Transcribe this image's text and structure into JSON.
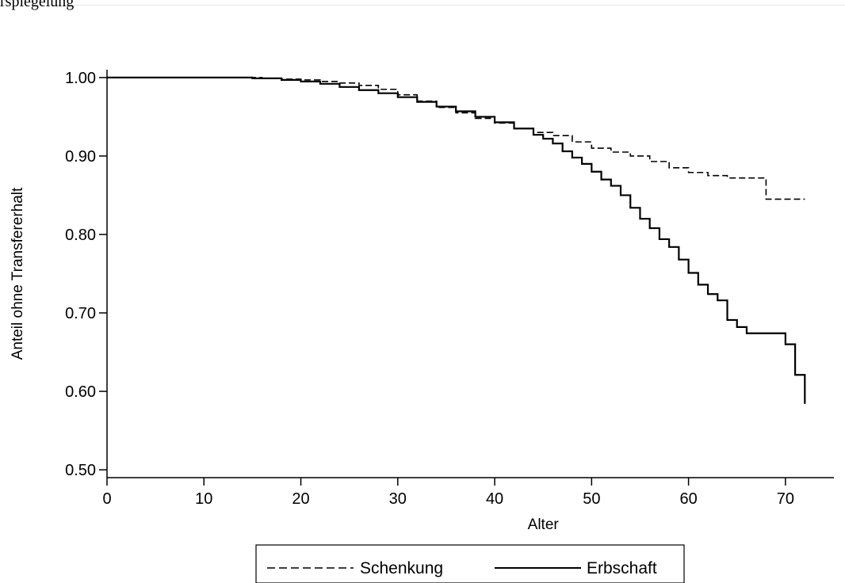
{
  "page_fragment": "rspiegelung",
  "chart_data": {
    "type": "line",
    "xlabel": "Alter",
    "ylabel": "Anteil ohne Transfererhalt",
    "xlim": [
      0,
      75
    ],
    "ylim": [
      0.49,
      1.01
    ],
    "x_ticks": [
      0,
      10,
      20,
      30,
      40,
      50,
      60,
      70
    ],
    "x_tick_labels": [
      "0",
      "10",
      "20",
      "30",
      "40",
      "50",
      "60",
      "70"
    ],
    "y_ticks": [
      0.5,
      0.6,
      0.7,
      0.8,
      0.9,
      1.0
    ],
    "y_tick_labels": [
      "0.50",
      "0.60",
      "0.70",
      "0.80",
      "0.90",
      "1.00"
    ],
    "grid": false,
    "legend_position": "bottom",
    "series": [
      {
        "name": "Schenkung",
        "style": "dashed",
        "color": "#000000",
        "step": true,
        "x": [
          0,
          10,
          16,
          18,
          20,
          22,
          24,
          26,
          28,
          30,
          32,
          34,
          36,
          38,
          40,
          42,
          44,
          46,
          48,
          50,
          52,
          54,
          56,
          58,
          60,
          62,
          64,
          66,
          68,
          72
        ],
        "y": [
          1.0,
          1.0,
          0.999,
          0.998,
          0.997,
          0.995,
          0.993,
          0.99,
          0.985,
          0.978,
          0.97,
          0.962,
          0.955,
          0.948,
          0.942,
          0.935,
          0.93,
          0.926,
          0.918,
          0.91,
          0.905,
          0.9,
          0.893,
          0.885,
          0.879,
          0.875,
          0.872,
          0.872,
          0.845,
          0.845
        ]
      },
      {
        "name": "Erbschaft",
        "style": "solid",
        "color": "#000000",
        "step": true,
        "x": [
          0,
          10,
          15,
          18,
          20,
          22,
          24,
          26,
          28,
          30,
          32,
          34,
          36,
          38,
          40,
          42,
          44,
          45,
          46,
          47,
          48,
          49,
          50,
          51,
          52,
          53,
          54,
          55,
          56,
          57,
          58,
          59,
          60,
          61,
          62,
          63,
          64,
          65,
          66,
          67,
          68,
          69,
          70,
          71,
          72
        ],
        "y": [
          1.0,
          1.0,
          0.999,
          0.997,
          0.995,
          0.992,
          0.988,
          0.984,
          0.98,
          0.975,
          0.969,
          0.963,
          0.957,
          0.95,
          0.943,
          0.935,
          0.927,
          0.922,
          0.916,
          0.906,
          0.898,
          0.89,
          0.88,
          0.87,
          0.862,
          0.85,
          0.834,
          0.82,
          0.808,
          0.794,
          0.784,
          0.768,
          0.751,
          0.736,
          0.724,
          0.716,
          0.691,
          0.682,
          0.674,
          0.674,
          0.674,
          0.674,
          0.66,
          0.621,
          0.584
        ]
      }
    ]
  }
}
